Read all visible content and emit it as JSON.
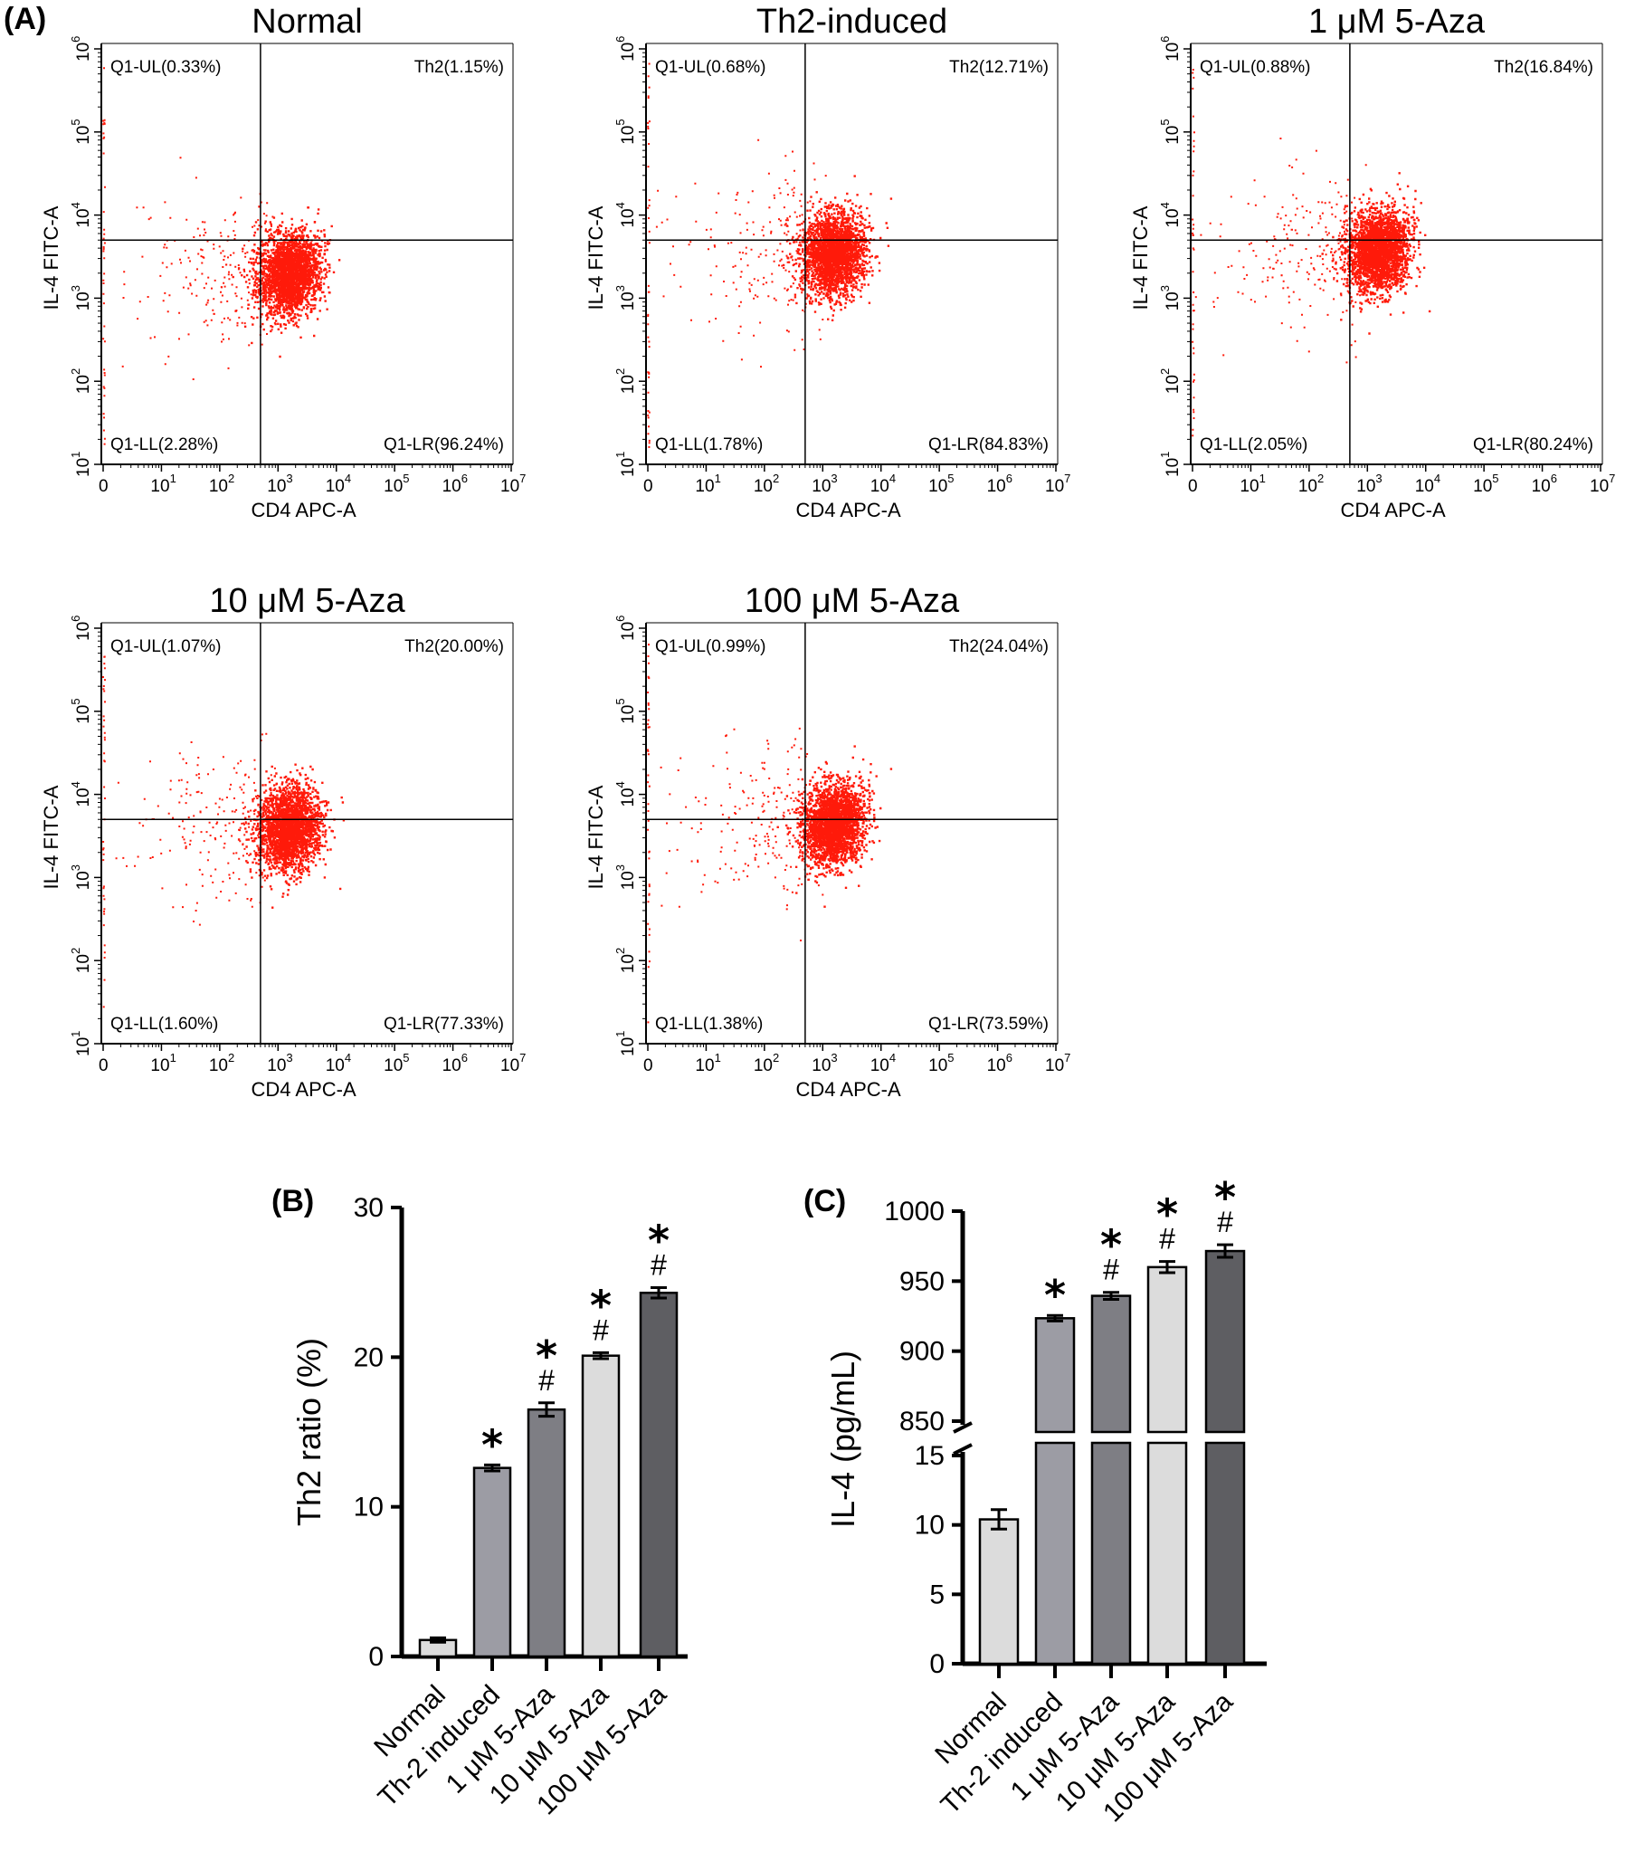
{
  "panel_labels": {
    "a": "(A)",
    "b": "(B)",
    "c": "(C)"
  },
  "colors": {
    "dots": "#ff1a0a",
    "axis": "#000000",
    "bar_light": "#dcdcdc",
    "bar_mid": "#9c9ca4",
    "bar_dark": "#7e7e84",
    "bar_darkest": "#5e5e62"
  },
  "flow_axis": {
    "x_label": "CD4 APC-A",
    "y_label": "IL-4 FITC-A",
    "x_ticks": [
      {
        "base": "0",
        "exp": ""
      },
      {
        "base": "10",
        "exp": "1"
      },
      {
        "base": "10",
        "exp": "2"
      },
      {
        "base": "10",
        "exp": "3"
      },
      {
        "base": "10",
        "exp": "4"
      },
      {
        "base": "10",
        "exp": "5"
      },
      {
        "base": "10",
        "exp": "6"
      },
      {
        "base": "10",
        "exp": "7"
      }
    ],
    "y_ticks": [
      {
        "base": "10",
        "exp": "1"
      },
      {
        "base": "10",
        "exp": "2"
      },
      {
        "base": "10",
        "exp": "3"
      },
      {
        "base": "10",
        "exp": "4"
      },
      {
        "base": "10",
        "exp": "5"
      },
      {
        "base": "10",
        "exp": "6"
      }
    ]
  },
  "chart_data": [
    {
      "type": "scatter",
      "title": "Normal",
      "xlabel": "CD4 APC-A",
      "ylabel": "IL-4 FITC-A",
      "quadrants": {
        "ul": "Q1-UL(0.33%)",
        "ur": "Th2(1.15%)",
        "ll": "Q1-LL(2.28%)",
        "lr": "Q1-LR(96.24%)"
      },
      "gate": {
        "x": 500,
        "y": 5000
      },
      "cluster": {
        "x_center": 1500,
        "y_center": 2000
      }
    },
    {
      "type": "scatter",
      "title": "Th2-induced",
      "xlabel": "CD4 APC-A",
      "ylabel": "IL-4 FITC-A",
      "quadrants": {
        "ul": "Q1-UL(0.68%)",
        "ur": "Th2(12.71%)",
        "ll": "Q1-LL(1.78%)",
        "lr": "Q1-LR(84.83%)"
      },
      "gate": {
        "x": 500,
        "y": 5000
      },
      "cluster": {
        "x_center": 1500,
        "y_center": 3500
      }
    },
    {
      "type": "scatter",
      "title": "1 μM 5-Aza",
      "xlabel": "CD4 APC-A",
      "ylabel": "IL-4 FITC-A",
      "quadrants": {
        "ul": "Q1-UL(0.88%)",
        "ur": "Th2(16.84%)",
        "ll": "Q1-LL(2.05%)",
        "lr": "Q1-LR(80.24%)"
      },
      "gate": {
        "x": 500,
        "y": 5000
      },
      "cluster": {
        "x_center": 1500,
        "y_center": 3800
      }
    },
    {
      "type": "scatter",
      "title": "10 μM 5-Aza",
      "xlabel": "CD4 APC-A",
      "ylabel": "IL-4 FITC-A",
      "quadrants": {
        "ul": "Q1-UL(1.07%)",
        "ur": "Th2(20.00%)",
        "ll": "Q1-LL(1.60%)",
        "lr": "Q1-LR(77.33%)"
      },
      "gate": {
        "x": 500,
        "y": 5000
      },
      "cluster": {
        "x_center": 1500,
        "y_center": 4000
      }
    },
    {
      "type": "scatter",
      "title": "100 μM 5-Aza",
      "xlabel": "CD4 APC-A",
      "ylabel": "IL-4 FITC-A",
      "quadrants": {
        "ul": "Q1-UL(0.99%)",
        "ur": "Th2(24.04%)",
        "ll": "Q1-LL(1.38%)",
        "lr": "Q1-LR(73.59%)"
      },
      "gate": {
        "x": 500,
        "y": 5000
      },
      "cluster": {
        "x_center": 1500,
        "y_center": 4500
      }
    },
    {
      "type": "bar",
      "ylabel": "Th2 ratio (%)",
      "categories": [
        "Normal",
        "Th-2 induced",
        "1 μM 5-Aza",
        "10 μM 5-Aza",
        "100 μM 5-Aza"
      ],
      "values": [
        1.1,
        12.6,
        16.5,
        20.1,
        24.3
      ],
      "errors": [
        0.15,
        0.2,
        0.45,
        0.2,
        0.35
      ],
      "annotations": [
        [],
        [
          "*"
        ],
        [
          "#",
          "*"
        ],
        [
          "#",
          "*"
        ],
        [
          "#",
          "*"
        ]
      ],
      "ylim": [
        0,
        30
      ],
      "yticks": [
        "0",
        "10",
        "20",
        "30"
      ]
    },
    {
      "type": "bar",
      "ylabel": "IL-4 (pg/mL)",
      "categories": [
        "Normal",
        "Th-2 induced",
        "1 μM 5-Aza",
        "10 μM 5-Aza",
        "100 μM 5-Aza"
      ],
      "values": [
        10.4,
        923.5,
        939.5,
        960.0,
        971.5
      ],
      "errors": [
        0.7,
        2.0,
        2.5,
        4.0,
        4.5
      ],
      "annotations": [
        [],
        [
          "*"
        ],
        [
          "#",
          "*"
        ],
        [
          "#",
          "*"
        ],
        [
          "#",
          "*"
        ]
      ],
      "axis_break": {
        "lower": [
          0,
          15
        ],
        "upper": [
          850,
          1000
        ]
      },
      "yticks_lower": [
        "0",
        "5",
        "10",
        "15"
      ],
      "yticks_upper": [
        "850",
        "900",
        "950",
        "1000"
      ]
    }
  ]
}
